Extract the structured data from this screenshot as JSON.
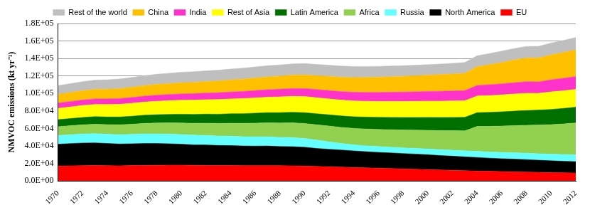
{
  "chart_data": {
    "type": "area",
    "stacked": true,
    "grid": true,
    "legend": "top",
    "y_label": "NMVOC emissions (kt yr⁻¹)",
    "categories": [
      "1970",
      null,
      "1972",
      null,
      "1974",
      null,
      "1976",
      null,
      "1978",
      null,
      "1980",
      null,
      "1982",
      null,
      "1984",
      null,
      "1986",
      null,
      "1988",
      null,
      "1990",
      null,
      "1992",
      null,
      "1994",
      null,
      "1996",
      null,
      "1998",
      null,
      "2000",
      null,
      "2002",
      null,
      "2004",
      null,
      "2006",
      null,
      "2008",
      null,
      "2010",
      null,
      "2012"
    ],
    "ylim": [
      0,
      180000
    ],
    "yticks": [
      {
        "value": 0,
        "label": "0.0E+00"
      },
      {
        "value": 20000,
        "label": "2.0E+04"
      },
      {
        "value": 40000,
        "label": "4.0E+04"
      },
      {
        "value": 60000,
        "label": "6.0E+04"
      },
      {
        "value": 80000,
        "label": "8.0E+04"
      },
      {
        "value": 100000,
        "label": "1.0E+05"
      },
      {
        "value": 120000,
        "label": "1.2E+05"
      },
      {
        "value": 140000,
        "label": "1.4E+05"
      },
      {
        "value": 160000,
        "label": "1.6E+05"
      },
      {
        "value": 180000,
        "label": "1.8E+05"
      }
    ],
    "series": [
      {
        "name": "Rest of the world",
        "color": "#bfbfbf",
        "values": [
          10000,
          10200,
          10400,
          10600,
          10800,
          11000,
          11200,
          11400,
          11600,
          11800,
          12000,
          12100,
          12200,
          12300,
          12400,
          12500,
          12600,
          12700,
          12800,
          12900,
          13000,
          12900,
          12800,
          12700,
          12600,
          12500,
          12400,
          12300,
          12200,
          12100,
          12000,
          12100,
          12200,
          12300,
          12500,
          12700,
          12900,
          13100,
          13300,
          13300,
          13600,
          13900,
          14200
        ]
      },
      {
        "name": "China",
        "color": "#ffc000",
        "values": [
          10000,
          10300,
          10600,
          10900,
          11100,
          11400,
          11700,
          12000,
          12300,
          12500,
          12800,
          13000,
          13200,
          13500,
          13800,
          14100,
          14400,
          14700,
          15000,
          15300,
          15600,
          15900,
          16200,
          16500,
          16800,
          17100,
          17400,
          17700,
          18000,
          18300,
          18600,
          19000,
          19400,
          19800,
          21500,
          23000,
          24500,
          26000,
          27000,
          27500,
          28500,
          29500,
          30500
        ]
      },
      {
        "name": "India",
        "color": "#ff33cc",
        "values": [
          6000,
          6100,
          6200,
          6300,
          6400,
          6500,
          6600,
          6700,
          6900,
          7000,
          7200,
          7300,
          7500,
          7700,
          7900,
          8100,
          8300,
          8500,
          8700,
          8900,
          9100,
          9300,
          9500,
          9700,
          9900,
          10100,
          10300,
          10500,
          10700,
          10900,
          11100,
          11300,
          11500,
          11700,
          12000,
          12300,
          12600,
          12900,
          13200,
          13000,
          13800,
          14200,
          14600
        ]
      },
      {
        "name": "Rest of Asia",
        "color": "#ffff00",
        "values": [
          13000,
          13300,
          13700,
          14000,
          14200,
          14500,
          14800,
          15100,
          15400,
          15700,
          16000,
          16300,
          16500,
          16800,
          17000,
          17300,
          17500,
          17700,
          18000,
          18200,
          18400,
          18300,
          18200,
          18100,
          18100,
          18100,
          18200,
          18300,
          18400,
          18500,
          18600,
          18700,
          18800,
          18900,
          19000,
          19200,
          19400,
          19600,
          19800,
          19200,
          20000,
          20200,
          20400
        ]
      },
      {
        "name": "Latin America",
        "color": "#007000",
        "values": [
          8000,
          8200,
          8400,
          8600,
          8700,
          8900,
          9100,
          9300,
          9500,
          9700,
          10000,
          10200,
          10400,
          10600,
          10900,
          11100,
          11400,
          11600,
          11900,
          12100,
          12400,
          12600,
          12900,
          13100,
          13300,
          13600,
          13800,
          14000,
          14300,
          14500,
          14700,
          15000,
          15200,
          15500,
          15800,
          16000,
          16300,
          16600,
          16900,
          17100,
          17400,
          17700,
          18000
        ]
      },
      {
        "name": "Africa",
        "color": "#92d050",
        "values": [
          10000,
          10200,
          10500,
          10800,
          11000,
          11300,
          11600,
          12000,
          12400,
          12800,
          13200,
          13600,
          14000,
          14400,
          14800,
          15200,
          15600,
          16000,
          16400,
          16800,
          17200,
          17600,
          18000,
          18400,
          18800,
          19200,
          19600,
          20000,
          20400,
          20800,
          21300,
          21800,
          22300,
          22800,
          28500,
          29300,
          30100,
          31000,
          31900,
          32800,
          33800,
          35000,
          36500
        ]
      },
      {
        "name": "Russia",
        "color": "#66ffff",
        "values": [
          10000,
          10200,
          10400,
          10600,
          10600,
          10700,
          10800,
          11000,
          11000,
          11100,
          11100,
          11000,
          10900,
          10800,
          10800,
          10700,
          10700,
          10600,
          10500,
          10400,
          10000,
          9500,
          8500,
          7500,
          7000,
          6800,
          6700,
          6600,
          6500,
          6500,
          6600,
          6700,
          6800,
          6900,
          7000,
          7100,
          7200,
          7300,
          7400,
          7500,
          7600,
          7700,
          7800
        ]
      },
      {
        "name": "North America",
        "color": "#000000",
        "values": [
          25000,
          25500,
          26000,
          26000,
          25500,
          25000,
          25000,
          25200,
          25000,
          24500,
          24000,
          23500,
          23500,
          23000,
          22800,
          22500,
          22500,
          22500,
          22000,
          22000,
          21500,
          20500,
          20000,
          19500,
          19000,
          18500,
          18000,
          17800,
          17500,
          17300,
          17000,
          16500,
          16200,
          15800,
          15500,
          15000,
          14700,
          14500,
          14200,
          13800,
          13500,
          13200,
          13000
        ]
      },
      {
        "name": "EU",
        "color": "#ff0000",
        "values": [
          17000,
          17200,
          17300,
          17500,
          17300,
          17200,
          17500,
          17600,
          17800,
          18000,
          18000,
          17800,
          17600,
          17500,
          17500,
          17400,
          17300,
          17400,
          17300,
          17200,
          17000,
          16600,
          16200,
          15800,
          15300,
          14900,
          14600,
          14200,
          13800,
          13400,
          13000,
          12500,
          12100,
          11700,
          11300,
          11000,
          10700,
          10400,
          10100,
          9800,
          9500,
          9300,
          9000
        ]
      }
    ]
  }
}
